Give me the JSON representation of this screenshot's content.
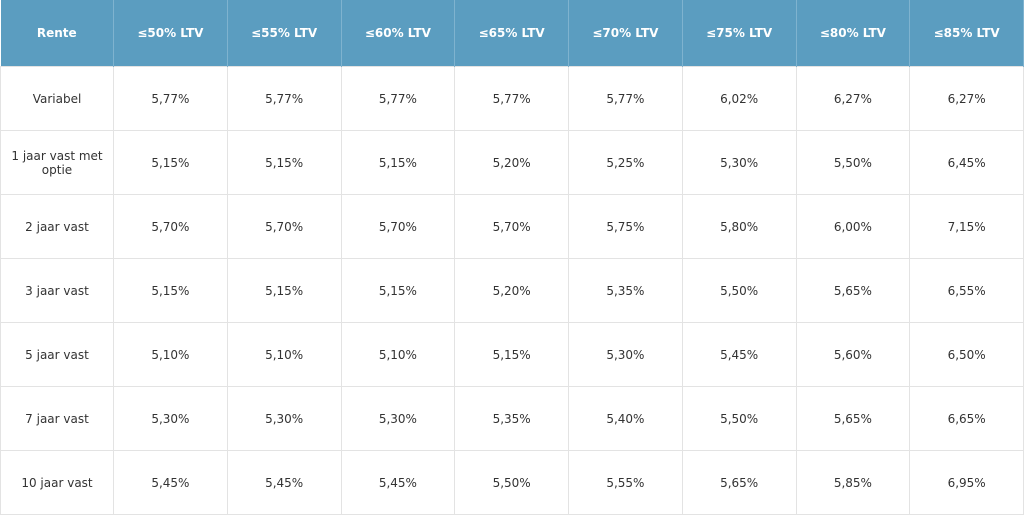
{
  "table": {
    "header": [
      "Rente",
      "≤50% LTV",
      "≤55% LTV",
      "≤60% LTV",
      "≤65% LTV",
      "≤70% LTV",
      "≤75% LTV",
      "≤80% LTV",
      "≤85% LTV"
    ],
    "rows": [
      [
        "Variabel",
        "5,77%",
        "5,77%",
        "5,77%",
        "5,77%",
        "5,77%",
        "6,02%",
        "6,27%",
        "6,27%"
      ],
      [
        "1 jaar vast met optie",
        "5,15%",
        "5,15%",
        "5,15%",
        "5,20%",
        "5,25%",
        "5,30%",
        "5,50%",
        "6,45%"
      ],
      [
        "2 jaar vast",
        "5,70%",
        "5,70%",
        "5,70%",
        "5,70%",
        "5,75%",
        "5,80%",
        "6,00%",
        "7,15%"
      ],
      [
        "3 jaar vast",
        "5,15%",
        "5,15%",
        "5,15%",
        "5,20%",
        "5,35%",
        "5,50%",
        "5,65%",
        "6,55%"
      ],
      [
        "5 jaar vast",
        "5,10%",
        "5,10%",
        "5,10%",
        "5,15%",
        "5,30%",
        "5,45%",
        "5,60%",
        "6,50%"
      ],
      [
        "7 jaar vast",
        "5,30%",
        "5,30%",
        "5,30%",
        "5,35%",
        "5,40%",
        "5,50%",
        "5,65%",
        "6,65%"
      ],
      [
        "10 jaar vast",
        "5,45%",
        "5,45%",
        "5,45%",
        "5,50%",
        "5,55%",
        "5,65%",
        "5,85%",
        "6,95%"
      ]
    ]
  }
}
